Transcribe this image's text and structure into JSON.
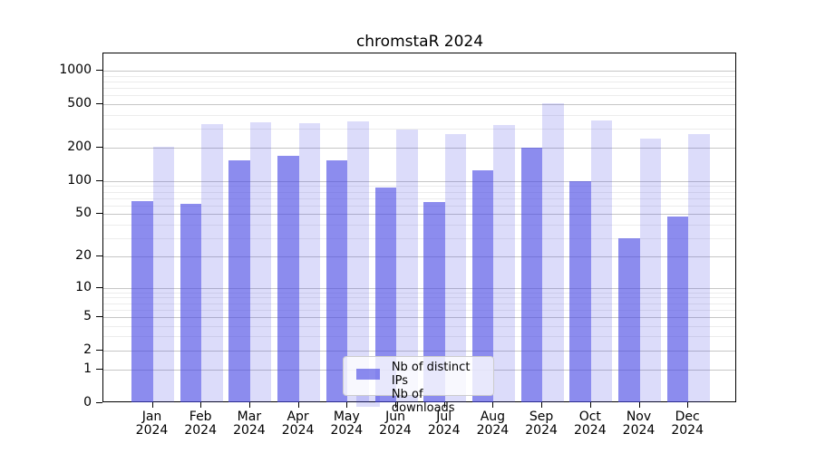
{
  "title": "chromstaR 2024",
  "chart_data": {
    "type": "bar",
    "title": "chromstaR 2024",
    "categories": [
      "Jan",
      "Feb",
      "Mar",
      "Apr",
      "May",
      "Jun",
      "Jul",
      "Aug",
      "Sep",
      "Oct",
      "Nov",
      "Dec"
    ],
    "year": "2024",
    "series": [
      {
        "name": "Nb of distinct IPs",
        "color": "rgba(70,70,228,0.62)",
        "values": [
          66,
          62,
          155,
          170,
          155,
          88,
          64,
          125,
          200,
          100,
          30,
          47
        ]
      },
      {
        "name": "Nb of downloads",
        "color": "rgba(70,70,228,0.19)",
        "values": [
          205,
          330,
          340,
          335,
          345,
          295,
          265,
          325,
          505,
          355,
          245,
          265
        ]
      }
    ],
    "xlabel": "",
    "ylabel": "",
    "y_scale": "log10(1+x)",
    "ylim": [
      0,
      1430
    ],
    "y_ticks": [
      0,
      1,
      2,
      5,
      10,
      20,
      50,
      100,
      200,
      500,
      1000
    ],
    "y_minor_ticks": [
      3,
      4,
      6,
      7,
      8,
      9,
      30,
      40,
      60,
      70,
      80,
      90,
      300,
      400,
      600,
      700,
      800,
      900
    ],
    "grid": true,
    "legend_position": "inside-bottom-center",
    "colors": {
      "bar_distinct_ips": "rgba(70,70,228,0.62)",
      "bar_downloads": "rgba(70,70,228,0.19)",
      "grid_major": "#c6c6c6",
      "grid_minor": "#ececec",
      "axis": "#000000",
      "background": "#ffffff"
    }
  },
  "legend": {
    "items": [
      {
        "label": "Nb of distinct IPs"
      },
      {
        "label": "Nb of downloads"
      }
    ]
  }
}
